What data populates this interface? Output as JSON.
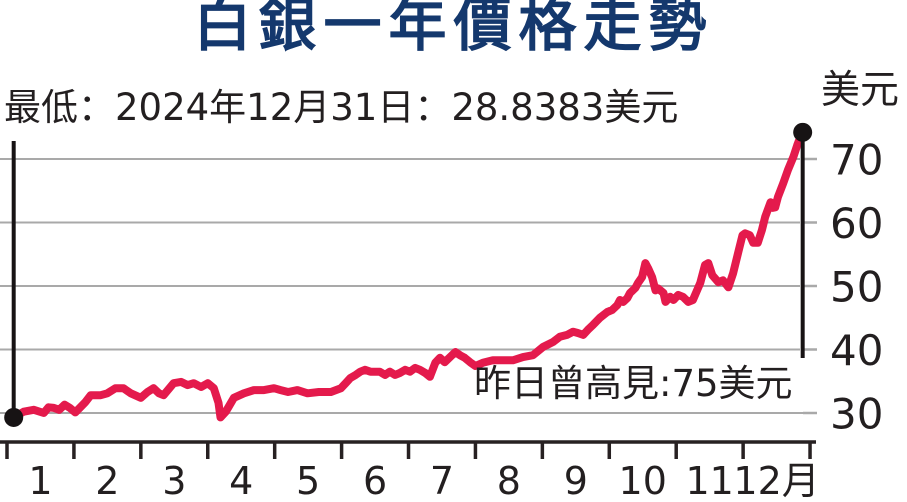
{
  "title": {
    "text": "白銀一年價格走勢",
    "color": "#14386d"
  },
  "annotations": {
    "low_label": "最低：2024年12月31日：28.8383美元",
    "high_label": "昨日曾高見:75美元",
    "unit_label": "美元"
  },
  "colors": {
    "line": "#e41a4c",
    "grid": "#a9a9a9",
    "axis": "#272122",
    "marker": "#171314",
    "text": "#231f20"
  },
  "chart_data": {
    "type": "line",
    "title": "白銀一年價格走勢",
    "xlabel": "月",
    "ylabel": "美元",
    "x_axis": {
      "labels": [
        "1",
        "2",
        "3",
        "4",
        "5",
        "6",
        "7",
        "8",
        "9",
        "10",
        "11",
        "12月"
      ],
      "boundary_ticks": 13,
      "range": [
        0,
        12
      ]
    },
    "y_axis": {
      "ticks": [
        30,
        40,
        50,
        60,
        70
      ],
      "range": [
        28,
        76
      ]
    },
    "grid": true,
    "legend": "none",
    "markers": {
      "start_dot": {
        "x": 0.1,
        "value": 29.3,
        "note": "最低 2024-12-31 28.8383美元"
      },
      "end_dot": {
        "x": 11.89,
        "value": 74.2,
        "note": "昨日曾高見 75美元"
      }
    },
    "series": [
      {
        "name": "白銀價格(美元)",
        "points": [
          [
            0.1,
            29.3
          ],
          [
            0.25,
            30.2
          ],
          [
            0.4,
            30.5
          ],
          [
            0.55,
            30.0
          ],
          [
            0.62,
            30.9
          ],
          [
            0.7,
            30.8
          ],
          [
            0.78,
            30.5
          ],
          [
            0.86,
            31.3
          ],
          [
            0.94,
            30.8
          ],
          [
            1.02,
            30.1
          ],
          [
            1.17,
            31.7
          ],
          [
            1.25,
            32.8
          ],
          [
            1.4,
            32.8
          ],
          [
            1.5,
            33.1
          ],
          [
            1.62,
            33.9
          ],
          [
            1.74,
            33.9
          ],
          [
            1.85,
            33.1
          ],
          [
            2.0,
            32.4
          ],
          [
            2.1,
            33.3
          ],
          [
            2.19,
            33.9
          ],
          [
            2.27,
            33.1
          ],
          [
            2.34,
            32.8
          ],
          [
            2.49,
            34.7
          ],
          [
            2.6,
            34.9
          ],
          [
            2.7,
            34.4
          ],
          [
            2.79,
            34.7
          ],
          [
            2.9,
            34.1
          ],
          [
            3.0,
            34.7
          ],
          [
            3.09,
            33.9
          ],
          [
            3.16,
            31.6
          ],
          [
            3.19,
            29.3
          ],
          [
            3.27,
            30.2
          ],
          [
            3.39,
            32.4
          ],
          [
            3.54,
            33.1
          ],
          [
            3.69,
            33.6
          ],
          [
            3.84,
            33.6
          ],
          [
            3.99,
            33.9
          ],
          [
            4.09,
            33.6
          ],
          [
            4.2,
            33.3
          ],
          [
            4.34,
            33.6
          ],
          [
            4.49,
            33.1
          ],
          [
            4.66,
            33.3
          ],
          [
            4.84,
            33.3
          ],
          [
            4.99,
            33.9
          ],
          [
            5.06,
            34.7
          ],
          [
            5.13,
            35.5
          ],
          [
            5.21,
            36.0
          ],
          [
            5.28,
            36.5
          ],
          [
            5.35,
            36.8
          ],
          [
            5.43,
            36.5
          ],
          [
            5.5,
            36.5
          ],
          [
            5.57,
            36.5
          ],
          [
            5.65,
            36.0
          ],
          [
            5.72,
            36.5
          ],
          [
            5.8,
            36.0
          ],
          [
            5.87,
            36.3
          ],
          [
            5.95,
            36.8
          ],
          [
            6.02,
            36.5
          ],
          [
            6.1,
            37.1
          ],
          [
            6.17,
            36.8
          ],
          [
            6.25,
            36.3
          ],
          [
            6.32,
            35.7
          ],
          [
            6.4,
            37.9
          ],
          [
            6.47,
            38.7
          ],
          [
            6.54,
            38.0
          ],
          [
            6.62,
            38.8
          ],
          [
            6.7,
            39.6
          ],
          [
            6.77,
            39.1
          ],
          [
            6.84,
            38.7
          ],
          [
            6.92,
            38.0
          ],
          [
            7.0,
            37.4
          ],
          [
            7.11,
            37.9
          ],
          [
            7.26,
            38.3
          ],
          [
            7.41,
            38.3
          ],
          [
            7.56,
            38.3
          ],
          [
            7.71,
            38.8
          ],
          [
            7.86,
            39.1
          ],
          [
            8.01,
            40.4
          ],
          [
            8.16,
            41.2
          ],
          [
            8.26,
            42.0
          ],
          [
            8.37,
            42.3
          ],
          [
            8.46,
            42.8
          ],
          [
            8.53,
            42.6
          ],
          [
            8.61,
            42.3
          ],
          [
            8.68,
            43.1
          ],
          [
            8.76,
            43.9
          ],
          [
            8.86,
            45.0
          ],
          [
            8.97,
            45.9
          ],
          [
            9.04,
            46.2
          ],
          [
            9.12,
            47.0
          ],
          [
            9.16,
            47.8
          ],
          [
            9.21,
            47.5
          ],
          [
            9.27,
            48.1
          ],
          [
            9.31,
            48.9
          ],
          [
            9.39,
            49.7
          ],
          [
            9.43,
            50.5
          ],
          [
            9.49,
            51.4
          ],
          [
            9.54,
            53.6
          ],
          [
            9.58,
            52.8
          ],
          [
            9.64,
            51.4
          ],
          [
            9.69,
            49.3
          ],
          [
            9.73,
            49.6
          ],
          [
            9.81,
            48.9
          ],
          [
            9.84,
            47.5
          ],
          [
            9.91,
            48.3
          ],
          [
            9.96,
            47.8
          ],
          [
            10.03,
            48.6
          ],
          [
            10.1,
            48.3
          ],
          [
            10.18,
            47.5
          ],
          [
            10.25,
            47.8
          ],
          [
            10.36,
            50.5
          ],
          [
            10.43,
            53.3
          ],
          [
            10.48,
            53.6
          ],
          [
            10.54,
            51.7
          ],
          [
            10.63,
            50.6
          ],
          [
            10.7,
            50.9
          ],
          [
            10.78,
            49.8
          ],
          [
            10.85,
            52.0
          ],
          [
            10.93,
            55.4
          ],
          [
            10.99,
            58.0
          ],
          [
            11.03,
            58.3
          ],
          [
            11.1,
            58.0
          ],
          [
            11.15,
            56.8
          ],
          [
            11.22,
            56.8
          ],
          [
            11.28,
            58.8
          ],
          [
            11.33,
            60.9
          ],
          [
            11.41,
            63.2
          ],
          [
            11.44,
            62.3
          ],
          [
            11.48,
            62.4
          ],
          [
            11.52,
            64.0
          ],
          [
            11.6,
            66.2
          ],
          [
            11.67,
            68.3
          ],
          [
            11.75,
            70.3
          ],
          [
            11.81,
            72.2
          ],
          [
            11.85,
            73.3
          ],
          [
            11.89,
            74.2
          ]
        ]
      }
    ]
  }
}
